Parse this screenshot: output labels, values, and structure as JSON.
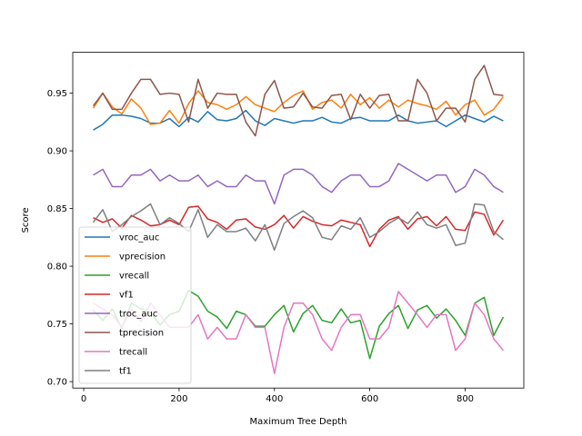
{
  "chart_data": {
    "type": "line",
    "title": "",
    "xlabel": "Maximum Tree Depth",
    "ylabel": "Score",
    "xlim": [
      -23,
      923
    ],
    "ylim": [
      0.6944,
      0.9854
    ],
    "xticks": [
      0,
      200,
      400,
      600,
      800
    ],
    "xtick_labels": [
      "0",
      "200",
      "400",
      "600",
      "800"
    ],
    "yticks": [
      0.7,
      0.75,
      0.8,
      0.85,
      0.9,
      0.95
    ],
    "ytick_labels": [
      "0.70",
      "0.75",
      "0.80",
      "0.85",
      "0.90",
      "0.95"
    ],
    "grid": false,
    "legend_placement": "lower-left",
    "x": [
      20,
      40,
      60,
      80,
      100,
      120,
      140,
      160,
      180,
      200,
      220,
      240,
      260,
      280,
      300,
      320,
      340,
      360,
      380,
      400,
      420,
      440,
      460,
      480,
      500,
      520,
      540,
      560,
      580,
      600,
      620,
      640,
      660,
      680,
      700,
      720,
      740,
      760,
      780,
      800,
      820,
      840,
      860,
      880
    ],
    "series": [
      {
        "name": "vroc_auc",
        "color": "#1f77b4",
        "values": [
          0.918,
          0.923,
          0.931,
          0.931,
          0.93,
          0.928,
          0.924,
          0.924,
          0.928,
          0.921,
          0.929,
          0.925,
          0.934,
          0.927,
          0.926,
          0.928,
          0.935,
          0.926,
          0.922,
          0.928,
          0.926,
          0.924,
          0.926,
          0.926,
          0.929,
          0.925,
          0.924,
          0.928,
          0.929,
          0.926,
          0.926,
          0.926,
          0.931,
          0.926,
          0.924,
          0.925,
          0.926,
          0.921,
          0.926,
          0.931,
          0.928,
          0.925,
          0.93,
          0.926
        ]
      },
      {
        "name": "vprecision",
        "color": "#ff7f0e",
        "values": [
          0.937,
          0.95,
          0.938,
          0.932,
          0.945,
          0.937,
          0.923,
          0.924,
          0.935,
          0.924,
          0.941,
          0.952,
          0.942,
          0.94,
          0.936,
          0.94,
          0.947,
          0.94,
          0.937,
          0.934,
          0.942,
          0.948,
          0.952,
          0.936,
          0.942,
          0.944,
          0.937,
          0.949,
          0.94,
          0.946,
          0.937,
          0.944,
          0.938,
          0.944,
          0.941,
          0.939,
          0.936,
          0.943,
          0.931,
          0.94,
          0.944,
          0.931,
          0.936,
          0.947
        ]
      },
      {
        "name": "vrecall",
        "color": "#2ca02c",
        "values": [
          0.762,
          0.753,
          0.763,
          0.746,
          0.768,
          0.763,
          0.76,
          0.749,
          0.758,
          0.761,
          0.779,
          0.774,
          0.761,
          0.756,
          0.746,
          0.761,
          0.758,
          0.748,
          0.748,
          0.758,
          0.766,
          0.743,
          0.759,
          0.766,
          0.753,
          0.751,
          0.763,
          0.751,
          0.753,
          0.72,
          0.748,
          0.759,
          0.766,
          0.746,
          0.762,
          0.766,
          0.755,
          0.763,
          0.753,
          0.74,
          0.768,
          0.773,
          0.74,
          0.756
        ]
      },
      {
        "name": "vf1",
        "color": "#d62728",
        "values": [
          0.842,
          0.838,
          0.841,
          0.833,
          0.844,
          0.84,
          0.835,
          0.836,
          0.84,
          0.836,
          0.851,
          0.852,
          0.841,
          0.838,
          0.832,
          0.84,
          0.841,
          0.834,
          0.832,
          0.836,
          0.844,
          0.833,
          0.843,
          0.839,
          0.836,
          0.835,
          0.84,
          0.838,
          0.836,
          0.817,
          0.832,
          0.84,
          0.843,
          0.832,
          0.841,
          0.843,
          0.835,
          0.843,
          0.832,
          0.831,
          0.847,
          0.845,
          0.827,
          0.84
        ]
      },
      {
        "name": "troc_auc",
        "color": "#9467bd",
        "values": [
          0.879,
          0.884,
          0.869,
          0.869,
          0.879,
          0.879,
          0.884,
          0.874,
          0.879,
          0.874,
          0.874,
          0.879,
          0.869,
          0.874,
          0.869,
          0.869,
          0.879,
          0.874,
          0.874,
          0.854,
          0.879,
          0.884,
          0.884,
          0.879,
          0.869,
          0.864,
          0.874,
          0.879,
          0.879,
          0.869,
          0.869,
          0.874,
          0.889,
          0.884,
          0.879,
          0.874,
          0.879,
          0.879,
          0.864,
          0.869,
          0.884,
          0.879,
          0.869,
          0.864
        ]
      },
      {
        "name": "tprecision",
        "color": "#8c564b",
        "values": [
          0.939,
          0.95,
          0.936,
          0.936,
          0.95,
          0.962,
          0.962,
          0.949,
          0.95,
          0.949,
          0.925,
          0.962,
          0.937,
          0.95,
          0.949,
          0.949,
          0.925,
          0.913,
          0.949,
          0.961,
          0.937,
          0.938,
          0.95,
          0.938,
          0.937,
          0.948,
          0.949,
          0.927,
          0.949,
          0.937,
          0.948,
          0.949,
          0.926,
          0.926,
          0.962,
          0.95,
          0.926,
          0.937,
          0.937,
          0.925,
          0.962,
          0.974,
          0.949,
          0.948
        ]
      },
      {
        "name": "trecall",
        "color": "#e377c2",
        "values": [
          0.768,
          0.763,
          0.758,
          0.747,
          0.763,
          0.752,
          0.768,
          0.758,
          0.747,
          0.747,
          0.747,
          0.758,
          0.737,
          0.747,
          0.737,
          0.737,
          0.758,
          0.747,
          0.747,
          0.707,
          0.747,
          0.768,
          0.768,
          0.758,
          0.737,
          0.727,
          0.747,
          0.758,
          0.758,
          0.737,
          0.737,
          0.747,
          0.778,
          0.768,
          0.758,
          0.747,
          0.758,
          0.758,
          0.727,
          0.737,
          0.768,
          0.758,
          0.737,
          0.727
        ]
      },
      {
        "name": "tf1",
        "color": "#7f7f7f",
        "values": [
          0.838,
          0.849,
          0.83,
          0.836,
          0.843,
          0.848,
          0.854,
          0.836,
          0.842,
          0.837,
          0.83,
          0.849,
          0.825,
          0.836,
          0.83,
          0.83,
          0.833,
          0.822,
          0.836,
          0.814,
          0.837,
          0.843,
          0.848,
          0.842,
          0.825,
          0.823,
          0.835,
          0.832,
          0.842,
          0.825,
          0.83,
          0.837,
          0.842,
          0.837,
          0.847,
          0.836,
          0.833,
          0.836,
          0.818,
          0.82,
          0.854,
          0.853,
          0.83,
          0.823
        ]
      }
    ]
  }
}
